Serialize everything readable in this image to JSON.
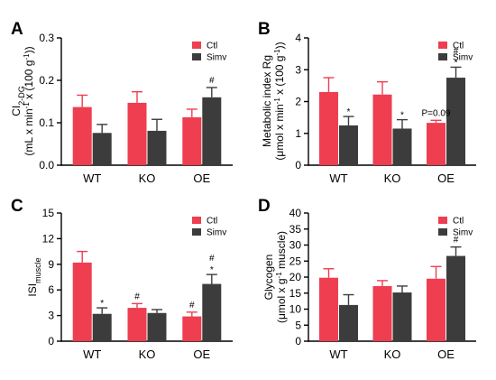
{
  "colors": {
    "ctl": "#ee3e50",
    "simv": "#3c3c3c",
    "axis": "#000000"
  },
  "chart_data": [
    {
      "type": "bar",
      "panel": "A",
      "categories": [
        "WT",
        "KO",
        "OE"
      ],
      "ylabel_lines": [
        [
          {
            "t": "CI"
          },
          {
            "t": "2-DG",
            "sub": true
          }
        ],
        [
          {
            "t": "(mL x min"
          },
          {
            "t": "-1",
            "sup": true
          },
          {
            "t": " x (100 g"
          },
          {
            "t": "-1",
            "sup": true
          },
          {
            "t": "))"
          }
        ]
      ],
      "ylim": [
        0,
        0.3
      ],
      "yticks": [
        0.0,
        0.1,
        0.2,
        0.3
      ],
      "ytick_labels": [
        "0.0",
        "0.1",
        "0.2",
        "0.3"
      ],
      "series": [
        {
          "name": "Ctl",
          "values": [
            0.137,
            0.147,
            0.113
          ],
          "errors": [
            0.028,
            0.026,
            0.019
          ]
        },
        {
          "name": "Simv",
          "values": [
            0.076,
            0.081,
            0.16
          ],
          "errors": [
            0.02,
            0.027,
            0.023
          ]
        }
      ],
      "annotations": [
        {
          "series": 1,
          "category": 2,
          "lines": [
            "#"
          ]
        }
      ]
    },
    {
      "type": "bar",
      "panel": "B",
      "categories": [
        "WT",
        "KO",
        "OE"
      ],
      "ylabel_lines": [
        [
          {
            "t": "Metabolic index Rg"
          }
        ],
        [
          {
            "t": "(μmol x min"
          },
          {
            "t": "-1",
            "sup": true
          },
          {
            "t": " x (100 g"
          },
          {
            "t": "-1",
            "sup": true
          },
          {
            "t": "))"
          }
        ]
      ],
      "ylim": [
        0,
        4
      ],
      "yticks": [
        0,
        1,
        2,
        3,
        4
      ],
      "ytick_labels": [
        "0",
        "1",
        "2",
        "3",
        "4"
      ],
      "series": [
        {
          "name": "Ctl",
          "values": [
            2.3,
            2.22,
            1.33
          ],
          "errors": [
            0.45,
            0.4,
            0.08
          ]
        },
        {
          "name": "Simv",
          "values": [
            1.25,
            1.15,
            2.75
          ],
          "errors": [
            0.28,
            0.28,
            0.33
          ]
        }
      ],
      "annotations": [
        {
          "series": 1,
          "category": 0,
          "lines": [
            "*"
          ]
        },
        {
          "series": 1,
          "category": 1,
          "lines": [
            "*"
          ]
        },
        {
          "series": 0,
          "category": 2,
          "lines": [
            "P=0.09"
          ]
        },
        {
          "series": 1,
          "category": 2,
          "lines": [
            "#",
            "*"
          ]
        }
      ]
    },
    {
      "type": "bar",
      "panel": "C",
      "categories": [
        "WT",
        "KO",
        "OE"
      ],
      "ylabel_lines": [
        [
          {
            "t": "ISI"
          },
          {
            "t": "muscle",
            "sub": true
          }
        ]
      ],
      "ylim": [
        0,
        15
      ],
      "yticks": [
        0,
        3,
        6,
        9,
        12,
        15
      ],
      "ytick_labels": [
        "0",
        "3",
        "6",
        "9",
        "12",
        "15"
      ],
      "series": [
        {
          "name": "Ctl",
          "values": [
            9.2,
            3.9,
            2.9
          ],
          "errors": [
            1.3,
            0.5,
            0.5
          ]
        },
        {
          "name": "Simv",
          "values": [
            3.2,
            3.3,
            6.7
          ],
          "errors": [
            0.7,
            0.4,
            1.1
          ]
        }
      ],
      "annotations": [
        {
          "series": 1,
          "category": 0,
          "lines": [
            "*"
          ]
        },
        {
          "series": 0,
          "category": 1,
          "lines": [
            "#"
          ]
        },
        {
          "series": 0,
          "category": 2,
          "lines": [
            "#"
          ]
        },
        {
          "series": 1,
          "category": 2,
          "lines": [
            "#",
            "*"
          ]
        }
      ]
    },
    {
      "type": "bar",
      "panel": "D",
      "categories": [
        "WT",
        "KO",
        "OE"
      ],
      "ylabel_lines": [
        [
          {
            "t": "Glycogen"
          }
        ],
        [
          {
            "t": "(μmol x g"
          },
          {
            "t": "-1",
            "sup": true
          },
          {
            "t": " muscle)"
          }
        ]
      ],
      "ylim": [
        0,
        40
      ],
      "yticks": [
        0,
        5,
        10,
        15,
        20,
        25,
        30,
        35,
        40
      ],
      "ytick_labels": [
        "0",
        "5",
        "10",
        "15",
        "20",
        "25",
        "30",
        "35",
        "40"
      ],
      "series": [
        {
          "name": "Ctl",
          "values": [
            19.8,
            17.2,
            19.5
          ],
          "errors": [
            2.8,
            1.7,
            3.8
          ]
        },
        {
          "name": "Simv",
          "values": [
            11.3,
            15.2,
            26.6
          ],
          "errors": [
            3.2,
            2.0,
            2.8
          ]
        }
      ],
      "annotations": [
        {
          "series": 1,
          "category": 2,
          "lines": [
            "#"
          ]
        }
      ]
    }
  ]
}
